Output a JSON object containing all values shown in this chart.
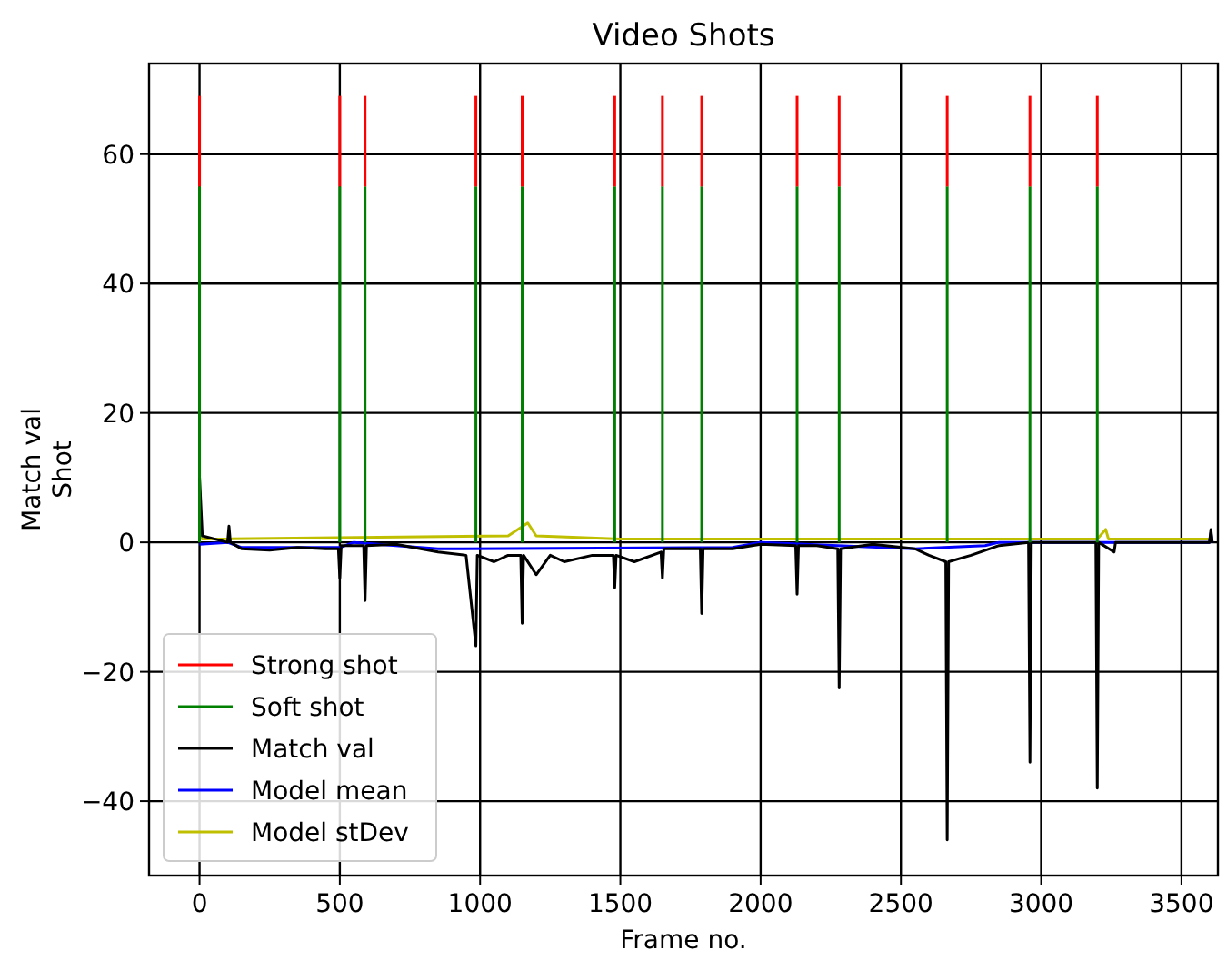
{
  "chart_data": {
    "type": "line",
    "title": "Video Shots",
    "xlabel": "Frame no.",
    "ylabel": "Match val\nShot",
    "xlim": [
      -180,
      3630
    ],
    "ylim": [
      -51.5,
      74
    ],
    "xticks": [
      0,
      500,
      1000,
      1500,
      2000,
      2500,
      3000,
      3500
    ],
    "yticks": [
      -40,
      -20,
      0,
      20,
      40,
      60
    ],
    "grid": true,
    "legend": "bottom left",
    "line_style": "solid",
    "series": [
      {
        "name": "Strong shot",
        "color": "#ff0000",
        "x": [
          0,
          0
        ],
        "values": [
          55,
          69
        ]
      },
      {
        "color": "#ff0000",
        "x": [
          500,
          500
        ],
        "values": [
          55,
          69
        ]
      },
      {
        "color": "#ff0000",
        "x": [
          590,
          590
        ],
        "values": [
          55,
          69
        ]
      },
      {
        "color": "#ff0000",
        "x": [
          985,
          985
        ],
        "values": [
          55,
          69
        ]
      },
      {
        "color": "#ff0000",
        "x": [
          1150,
          1150
        ],
        "values": [
          55,
          69
        ]
      },
      {
        "color": "#ff0000",
        "x": [
          1480,
          1480
        ],
        "values": [
          55,
          69
        ]
      },
      {
        "color": "#ff0000",
        "x": [
          1650,
          1650
        ],
        "values": [
          55,
          69
        ]
      },
      {
        "color": "#ff0000",
        "x": [
          1790,
          1790
        ],
        "values": [
          55,
          69
        ]
      },
      {
        "color": "#ff0000",
        "x": [
          2130,
          2130
        ],
        "values": [
          55,
          69
        ]
      },
      {
        "color": "#ff0000",
        "x": [
          2280,
          2280
        ],
        "values": [
          55,
          69
        ]
      },
      {
        "color": "#ff0000",
        "x": [
          2665,
          2665
        ],
        "values": [
          55,
          69
        ]
      },
      {
        "color": "#ff0000",
        "x": [
          2960,
          2960
        ],
        "values": [
          55,
          69
        ]
      },
      {
        "color": "#ff0000",
        "x": [
          3200,
          3200
        ],
        "values": [
          55,
          69
        ]
      },
      {
        "name": "Soft shot",
        "color": "#008000",
        "x": [
          0,
          0
        ],
        "values": [
          0,
          55
        ]
      },
      {
        "color": "#008000",
        "x": [
          500,
          500
        ],
        "values": [
          0,
          55
        ]
      },
      {
        "color": "#008000",
        "x": [
          590,
          590
        ],
        "values": [
          0,
          55
        ]
      },
      {
        "color": "#008000",
        "x": [
          985,
          985
        ],
        "values": [
          0,
          55
        ]
      },
      {
        "color": "#008000",
        "x": [
          1150,
          1150
        ],
        "values": [
          0,
          55
        ]
      },
      {
        "color": "#008000",
        "x": [
          1480,
          1480
        ],
        "values": [
          0,
          55
        ]
      },
      {
        "color": "#008000",
        "x": [
          1650,
          1650
        ],
        "values": [
          0,
          55
        ]
      },
      {
        "color": "#008000",
        "x": [
          1790,
          1790
        ],
        "values": [
          0,
          55
        ]
      },
      {
        "color": "#008000",
        "x": [
          2130,
          2130
        ],
        "values": [
          0,
          55
        ]
      },
      {
        "color": "#008000",
        "x": [
          2280,
          2280
        ],
        "values": [
          0,
          55
        ]
      },
      {
        "color": "#008000",
        "x": [
          2665,
          2665
        ],
        "values": [
          0,
          55
        ]
      },
      {
        "color": "#008000",
        "x": [
          2960,
          2960
        ],
        "values": [
          0,
          55
        ]
      },
      {
        "color": "#008000",
        "x": [
          3200,
          3200
        ],
        "values": [
          0,
          55
        ]
      },
      {
        "name": "Match val",
        "color": "#000000",
        "x": [
          0,
          10,
          100,
          105,
          110,
          150,
          250,
          350,
          450,
          495,
          500,
          505,
          585,
          590,
          595,
          700,
          850,
          950,
          985,
          990,
          1050,
          1100,
          1145,
          1150,
          1155,
          1200,
          1250,
          1300,
          1400,
          1475,
          1480,
          1485,
          1550,
          1645,
          1650,
          1655,
          1785,
          1790,
          1795,
          1900,
          2000,
          2125,
          2130,
          2135,
          2200,
          2275,
          2280,
          2285,
          2400,
          2550,
          2600,
          2660,
          2665,
          2670,
          2750,
          2850,
          2955,
          2960,
          2965,
          3100,
          3195,
          3200,
          3205,
          3260,
          3265,
          3600,
          3605,
          3610
        ],
        "values": [
          10,
          1,
          0,
          2.5,
          0,
          -1,
          -1.2,
          -0.8,
          -1,
          -1,
          -5.5,
          -0.5,
          -0.5,
          -9,
          -0.5,
          -0.3,
          -1.5,
          -2,
          -16,
          -2,
          -3,
          -2,
          -2,
          -12.5,
          -2,
          -5,
          -2,
          -3,
          -2,
          -2,
          -7,
          -2,
          -3,
          -1.5,
          -5.5,
          -1,
          -1,
          -11,
          -1,
          -1,
          -0.3,
          -0.5,
          -8,
          -0.5,
          -0.5,
          -1,
          -22.5,
          -1,
          -0.3,
          -1,
          -2,
          -3,
          -46,
          -3,
          -2,
          -0.5,
          0,
          -34,
          0,
          0,
          0,
          -38,
          0,
          -1.5,
          0,
          0,
          2,
          0
        ]
      },
      {
        "name": "Model mean",
        "color": "#0000ff",
        "x": [
          0,
          100,
          150,
          500,
          550,
          850,
          1900,
          2000,
          2550,
          2800,
          2850,
          3600,
          3605,
          3610
        ],
        "values": [
          -0.3,
          0,
          -0.8,
          -0.8,
          0,
          -1,
          -0.8,
          0,
          -1,
          -0.5,
          0,
          0,
          1.5,
          0
        ]
      },
      {
        "name": "Model stDev",
        "color": "#bfbf00",
        "x": [
          0,
          10,
          1100,
          1170,
          1200,
          1500,
          3200,
          3230,
          3240,
          3610
        ],
        "values": [
          1,
          0.5,
          1,
          3,
          1,
          0.5,
          0.5,
          2,
          0.5,
          0.5
        ]
      }
    ]
  }
}
